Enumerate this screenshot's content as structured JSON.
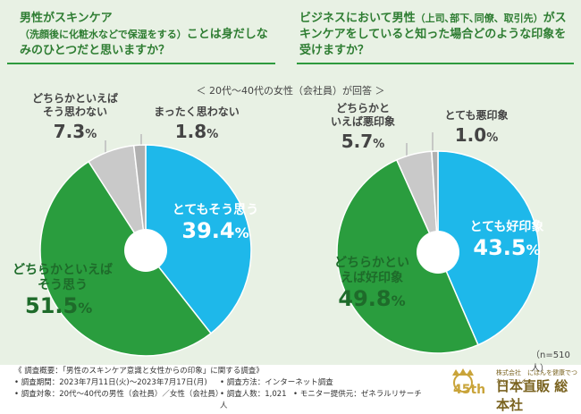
{
  "questions": {
    "left": {
      "part1": "男性がスキンケア",
      "paren": "（洗顔後に化粧水などで保湿をする）",
      "part2": "ことは身だしなみのひとつだと思いますか？"
    },
    "right": {
      "part1": "ビジネスにおいて男性",
      "paren": "（上司､部下､同僚、取引先）",
      "part2": "がスキンケアをしていると知った場合どのような印象を受けますか？"
    }
  },
  "respondent_note": "＜ 20代～40代の女性（会社員）が回答 ＞",
  "sample_size": "（n=510人）",
  "chart_data": [
    {
      "type": "pie",
      "title": "男性がスキンケアは身だしなみのひとつだと思いますか？",
      "categories": [
        "とてもそう思う",
        "どちらかといえばそう思う",
        "どちらかといえばそう思わない",
        "まったく思わない"
      ],
      "values": [
        39.4,
        51.5,
        7.3,
        1.8
      ],
      "colors": [
        "#1eb8ea",
        "#2a9d3e",
        "#c9c9c9",
        "#b0b0b0"
      ],
      "labels": [
        {
          "text": "とてもそう思う",
          "num": "39.4",
          "unit": "%"
        },
        {
          "text": "どちらかといえば\nそう思う",
          "num": "51.5",
          "unit": "%"
        },
        {
          "text": "どちらかといえば\nそう思わない",
          "num": "7.3",
          "unit": "%"
        },
        {
          "text": "まったく思わない",
          "num": "1.8",
          "unit": "%"
        }
      ]
    },
    {
      "type": "pie",
      "title": "どのような印象を受けますか？",
      "categories": [
        "とても好印象",
        "どちらかといえば好印象",
        "どちらかといえば悪印象",
        "とても悪印象"
      ],
      "values": [
        43.5,
        49.8,
        5.7,
        1.0
      ],
      "colors": [
        "#1eb8ea",
        "#2a9d3e",
        "#c9c9c9",
        "#b0b0b0"
      ],
      "labels": [
        {
          "text": "とても好印象",
          "num": "43.5",
          "unit": "%"
        },
        {
          "text": "どちらかとい\nえば好印象",
          "num": "49.8",
          "unit": "%"
        },
        {
          "text": "どちらかと\nいえば悪印象",
          "num": "5.7",
          "unit": "%"
        },
        {
          "text": "とても悪印象",
          "num": "1.0",
          "unit": "%"
        }
      ]
    }
  ],
  "footer": {
    "overview": "《 調査概要：「男性のスキンケア意識と女性からの印象」に関する調査》",
    "period": "• 調査期間：2023年7月11日(火)～2023年7月17日(月)",
    "method": "• 調査方法：インターネット調査",
    "target": "• 調査対象：20代～40代の男性（会社員）／女性（会社員）",
    "count": "• 調査人数：1,021人",
    "provider": "• モニター提供元：ゼネラルリサーチ"
  },
  "logo": {
    "sub": "株式会社　にほんを健康でつないでいく",
    "main": "日本直販 総本社",
    "num": "45th"
  }
}
